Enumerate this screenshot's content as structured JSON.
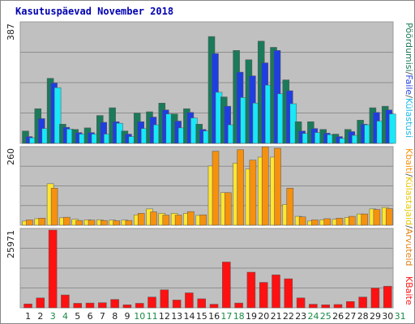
{
  "title": "Kasutuspäevad November 2018",
  "colors": {
    "panel": "#c0c0c0",
    "weekend_day": "#198a45",
    "weekday": "#222222",
    "grid": "#8e8e8e"
  },
  "chart_data": [
    {
      "type": "bar",
      "panel": "top",
      "ymax_label": "387",
      "ylim": [
        0,
        387
      ],
      "categories": [
        "1",
        "2",
        "3",
        "4",
        "5",
        "6",
        "7",
        "8",
        "9",
        "10",
        "11",
        "12",
        "13",
        "14",
        "15",
        "16",
        "17",
        "18",
        "19",
        "20",
        "21",
        "22",
        "23",
        "24",
        "25",
        "26",
        "27",
        "28",
        "29",
        "30",
        "31"
      ],
      "weekend_days": [
        "3",
        "4",
        "10",
        "11",
        "17",
        "18",
        "24",
        "25",
        "31"
      ],
      "series": [
        {
          "name": "Külastajaid",
          "color": "#1a7a5a",
          "values": [
            40,
            112,
            210,
            62,
            45,
            50,
            90,
            115,
            40,
            98,
            102,
            130,
            95,
            112,
            62,
            345,
            150,
            300,
            270,
            330,
            310,
            205,
            70,
            70,
            45,
            30,
            45,
            75,
            115,
            120,
            null
          ]
        },
        {
          "name": "Külastusi",
          "color": "#1f3ee0",
          "values": [
            22,
            80,
            195,
            52,
            35,
            35,
            68,
            70,
            30,
            70,
            85,
            108,
            72,
            100,
            45,
            290,
            120,
            230,
            218,
            260,
            300,
            170,
            40,
            48,
            33,
            22,
            38,
            62,
            100,
            108,
            null
          ]
        },
        {
          "name": "Faile",
          "color": "#18e8f8",
          "values": [
            18,
            48,
            180,
            46,
            30,
            30,
            30,
            65,
            22,
            48,
            60,
            95,
            50,
            82,
            40,
            165,
            60,
            148,
            130,
            188,
            160,
            128,
            32,
            35,
            28,
            16,
            26,
            60,
            72,
            95,
            null
          ]
        }
      ],
      "legend": [
        "Pöördumisi",
        "/",
        "Faile",
        "/",
        "Külastusi"
      ]
    },
    {
      "type": "bar",
      "panel": "middle",
      "ymax_label": "260",
      "ylim": [
        0,
        260
      ],
      "categories": [
        "1",
        "2",
        "3",
        "4",
        "5",
        "6",
        "7",
        "8",
        "9",
        "10",
        "11",
        "12",
        "13",
        "14",
        "15",
        "16",
        "17",
        "18",
        "19",
        "20",
        "21",
        "22",
        "23",
        "24",
        "25",
        "26",
        "27",
        "28",
        "29",
        "30",
        "31"
      ],
      "series": [
        {
          "name": "Külastajaid",
          "color": "#ffe630",
          "values": [
            14,
            22,
            140,
            25,
            20,
            18,
            18,
            17,
            17,
            35,
            55,
            40,
            40,
            40,
            33,
            200,
            110,
            210,
            190,
            230,
            230,
            70,
            30,
            14,
            18,
            20,
            26,
            38,
            55,
            60,
            null
          ]
        },
        {
          "name": "Kbaiti",
          "color": "#f5910e",
          "values": [
            18,
            24,
            125,
            27,
            16,
            17,
            16,
            15,
            16,
            40,
            45,
            34,
            34,
            46,
            35,
            250,
            110,
            255,
            220,
            265,
            260,
            125,
            28,
            18,
            22,
            24,
            30,
            38,
            53,
            56,
            null
          ]
        }
      ],
      "legend": [
        "Kbaiti",
        "/",
        "Külastajaid",
        "/",
        "Arvuteid"
      ]
    },
    {
      "type": "bar",
      "panel": "bottom",
      "ymax_label": "25971",
      "ylim": [
        0,
        25971
      ],
      "categories": [
        "1",
        "2",
        "3",
        "4",
        "5",
        "6",
        "7",
        "8",
        "9",
        "10",
        "11",
        "12",
        "13",
        "14",
        "15",
        "16",
        "17",
        "18",
        "19",
        "20",
        "21",
        "22",
        "23",
        "24",
        "25",
        "26",
        "27",
        "28",
        "29",
        "30",
        "31"
      ],
      "series": [
        {
          "name": "KBaite",
          "color": "#ff1111",
          "values": [
            1300,
            3300,
            25971,
            4300,
            1500,
            1600,
            1700,
            2800,
            1000,
            1500,
            3600,
            6000,
            2600,
            5000,
            3000,
            1200,
            15300,
            1600,
            11900,
            8500,
            11000,
            9700,
            3300,
            1200,
            1000,
            1100,
            2100,
            3600,
            6600,
            7200,
            null
          ]
        }
      ],
      "legend": [
        "KBaite"
      ]
    }
  ]
}
